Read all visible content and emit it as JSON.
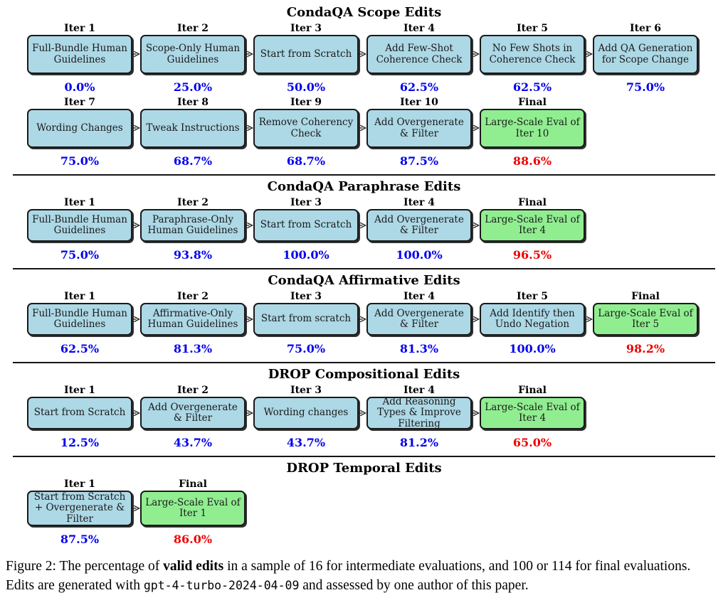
{
  "colors": {
    "node_fill": "#ADD8E6",
    "final_fill": "#90EE90",
    "pct_color": "#0000EE",
    "final_pct_color": "#EE0000",
    "border": "#1A1A1A"
  },
  "figure": {
    "sections": [
      {
        "title": "CondaQA Scope Edits",
        "rows": [
          {
            "nodes": [
              {
                "header": "Iter 1",
                "label": "Full-Bundle Human Guidelines",
                "pct": "0.0%",
                "final": false
              },
              {
                "header": "Iter 2",
                "label": "Scope-Only Human Guidelines",
                "pct": "25.0%",
                "final": false
              },
              {
                "header": "Iter 3",
                "label": "Start from Scratch",
                "pct": "50.0%",
                "final": false
              },
              {
                "header": "Iter 4",
                "label": "Add Few-Shot Coherence Check",
                "pct": "62.5%",
                "final": false
              },
              {
                "header": "Iter 5",
                "label": "No Few Shots in Coherence Check",
                "pct": "62.5%",
                "final": false
              },
              {
                "header": "Iter 6",
                "label": "Add QA Generation for Scope Change",
                "pct": "75.0%",
                "final": false
              }
            ]
          },
          {
            "nodes": [
              {
                "header": "Iter 7",
                "label": "Wording Changes",
                "pct": "75.0%",
                "final": false
              },
              {
                "header": "Iter 8",
                "label": "Tweak Instructions",
                "pct": "68.7%",
                "final": false
              },
              {
                "header": "Iter 9",
                "label": "Remove Coherency Check",
                "pct": "68.7%",
                "final": false
              },
              {
                "header": "Iter 10",
                "label": "Add Overgenerate & Filter",
                "pct": "87.5%",
                "final": false
              },
              {
                "header": "Final",
                "label": "Large-Scale Eval of Iter 10",
                "pct": "88.6%",
                "final": true
              }
            ]
          }
        ]
      },
      {
        "title": "CondaQA Paraphrase Edits",
        "rows": [
          {
            "nodes": [
              {
                "header": "Iter 1",
                "label": "Full-Bundle Human Guidelines",
                "pct": "75.0%",
                "final": false
              },
              {
                "header": "Iter 2",
                "label": "Paraphrase-Only Human Guidelines",
                "pct": "93.8%",
                "final": false
              },
              {
                "header": "Iter 3",
                "label": "Start from Scratch",
                "pct": "100.0%",
                "final": false
              },
              {
                "header": "Iter 4",
                "label": "Add Overgenerate & Filter",
                "pct": "100.0%",
                "final": false
              },
              {
                "header": "Final",
                "label": "Large-Scale Eval of Iter 4",
                "pct": "96.5%",
                "final": true
              }
            ]
          }
        ]
      },
      {
        "title": "CondaQA Affirmative Edits",
        "rows": [
          {
            "nodes": [
              {
                "header": "Iter 1",
                "label": "Full-Bundle Human Guidelines",
                "pct": "62.5%",
                "final": false
              },
              {
                "header": "Iter 2",
                "label": "Affirmative-Only Human Guidelines",
                "pct": "81.3%",
                "final": false
              },
              {
                "header": "Iter 3",
                "label": "Start from scratch",
                "pct": "75.0%",
                "final": false
              },
              {
                "header": "Iter 4",
                "label": "Add Overgenerate & Filter",
                "pct": "81.3%",
                "final": false
              },
              {
                "header": "Iter 5",
                "label": "Add Identify then Undo Negation",
                "pct": "100.0%",
                "final": false
              },
              {
                "header": "Final",
                "label": "Large-Scale Eval of Iter 5",
                "pct": "98.2%",
                "final": true
              }
            ]
          }
        ]
      },
      {
        "title": "DROP Compositional Edits",
        "rows": [
          {
            "nodes": [
              {
                "header": "Iter 1",
                "label": "Start from Scratch",
                "pct": "12.5%",
                "final": false
              },
              {
                "header": "Iter 2",
                "label": "Add Overgenerate & Filter",
                "pct": "43.7%",
                "final": false
              },
              {
                "header": "Iter 3",
                "label": "Wording changes",
                "pct": "43.7%",
                "final": false
              },
              {
                "header": "Iter 4",
                "label": "Add Reasoning Types & Improve Filtering",
                "pct": "81.2%",
                "final": false
              },
              {
                "header": "Final",
                "label": "Large-Scale Eval of Iter 4",
                "pct": "65.0%",
                "final": true
              }
            ]
          }
        ]
      },
      {
        "title": "DROP Temporal Edits",
        "rows": [
          {
            "nodes": [
              {
                "header": "Iter 1",
                "label": "Start from Scratch + Overgenerate & Filter",
                "pct": "87.5%",
                "final": false
              },
              {
                "header": "Final",
                "label": "Large-Scale Eval of Iter 1",
                "pct": "86.0%",
                "final": true
              }
            ]
          }
        ]
      }
    ],
    "caption": {
      "label": "Figure 2:",
      "part1": " The percentage of ",
      "bold": "valid edits",
      "part2": " in a sample of 16 for intermediate evaluations, and 100 or 114 for final evaluations. Edits are generated with ",
      "code": "gpt-4-turbo-2024-04-09",
      "part3": " and assessed by one author of this paper."
    }
  }
}
